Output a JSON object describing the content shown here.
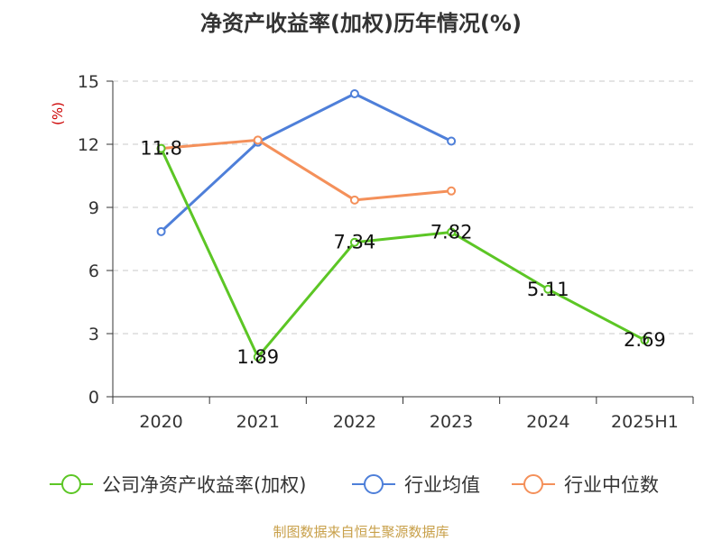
{
  "chart_data": {
    "type": "line",
    "title": "净资产收益率(加权)历年情况(%)",
    "ylabel": "(%)",
    "categories": [
      "2020",
      "2021",
      "2022",
      "2023",
      "2024",
      "2025H1"
    ],
    "ylim": [
      0,
      15
    ],
    "yticks": [
      0,
      3,
      6,
      9,
      12,
      15
    ],
    "grid": true,
    "legend_position": "bottom",
    "series": [
      {
        "name": "公司净资产收益率(加权)",
        "color": "#5cc625",
        "values": [
          11.8,
          1.89,
          7.34,
          7.82,
          5.11,
          2.69
        ],
        "labels": [
          "11.8",
          "1.89",
          "7.34",
          "7.82",
          "5.11",
          "2.69"
        ]
      },
      {
        "name": "行业均值",
        "color": "#4e7fd9",
        "values": [
          7.85,
          12.1,
          14.4,
          12.15,
          null,
          null
        ]
      },
      {
        "name": "行业中位数",
        "color": "#f4905a",
        "values": [
          11.8,
          12.2,
          9.35,
          9.78,
          null,
          null
        ]
      }
    ]
  },
  "source": "制图数据来自恒生聚源数据库",
  "colors": {
    "axis": "#333333",
    "grid": "#c8c8c8",
    "ylabel": "#cc0000",
    "source": "#c8a04a"
  }
}
